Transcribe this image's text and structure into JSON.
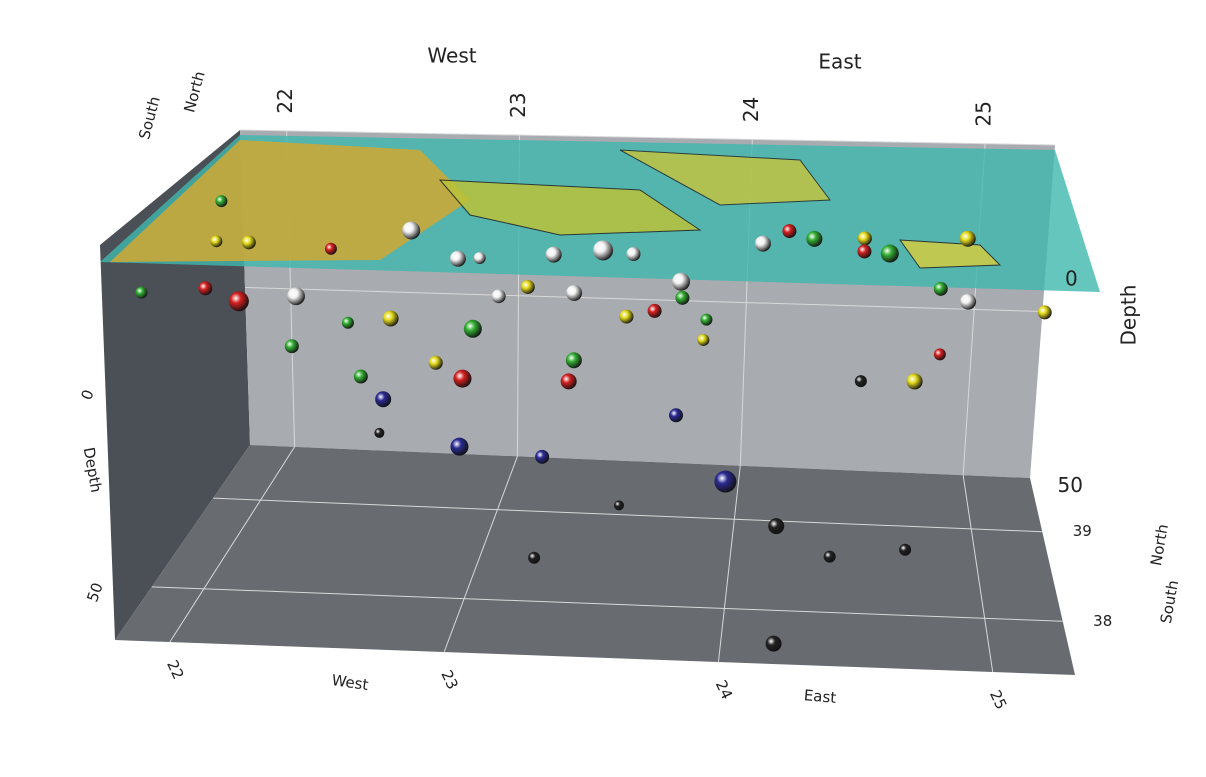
{
  "chart_data": {
    "type": "scatter3d",
    "x_labels": [
      "West",
      "East"
    ],
    "lat_labels": [
      "South",
      "North"
    ],
    "depth_label": "Depth",
    "xlim": [
      21.8,
      25.3
    ],
    "xticks": [
      22,
      23,
      24,
      25
    ],
    "latlim": [
      37.4,
      39.6
    ],
    "latticks": [
      38,
      39
    ],
    "depthlim": [
      0,
      100
    ],
    "depthticks": [
      0,
      50
    ],
    "grid": true,
    "series": [
      {
        "color": "#f2f2f2",
        "lon": [
          22.9,
          23.0,
          23.3,
          23.5,
          23.6,
          23.4,
          22.3,
          23.8,
          24.1,
          24.9,
          23.1,
          22.7
        ],
        "lat": [
          38.6,
          38.5,
          38.4,
          38.3,
          38.5,
          38.2,
          38.4,
          38.3,
          38.6,
          38.2,
          38.3,
          38.7
        ],
        "depth": [
          20,
          18,
          15,
          12,
          16,
          22,
          28,
          20,
          14,
          22,
          25,
          14
        ],
        "size": [
          8,
          6,
          8,
          10,
          7,
          8,
          9,
          9,
          8,
          8,
          7,
          9
        ]
      },
      {
        "color": "#e6dc1e",
        "lon": [
          21.9,
          22.1,
          22.7,
          23.2,
          23.6,
          24.5,
          24.9,
          25.2,
          23.9,
          24.7,
          22.9
        ],
        "lat": [
          38.8,
          38.5,
          38.2,
          38.4,
          38.2,
          38.6,
          38.5,
          38.3,
          38.1,
          37.9,
          38.0
        ],
        "depth": [
          20,
          15,
          30,
          24,
          28,
          12,
          10,
          26,
          32,
          38,
          38
        ],
        "size": [
          6,
          7,
          8,
          7,
          7,
          7,
          8,
          7,
          6,
          8,
          7
        ]
      },
      {
        "color": "#d42020",
        "lon": [
          21.9,
          22.1,
          22.4,
          23.0,
          23.4,
          24.2,
          24.5,
          24.8,
          23.7
        ],
        "lat": [
          38.6,
          38.3,
          38.6,
          38.0,
          38.0,
          38.7,
          38.5,
          38.2,
          38.3
        ],
        "depth": [
          30,
          28,
          18,
          42,
          42,
          12,
          14,
          36,
          28
        ],
        "size": [
          7,
          10,
          6,
          9,
          8,
          7,
          7,
          6,
          7
        ]
      },
      {
        "color": "#34b034",
        "lon": [
          21.7,
          21.9,
          22.3,
          22.6,
          23.0,
          23.4,
          23.8,
          24.3,
          24.6,
          24.8,
          22.5,
          23.9
        ],
        "lat": [
          38.4,
          38.9,
          38.3,
          38.1,
          38.3,
          38.2,
          38.4,
          38.7,
          38.6,
          38.4,
          38.4,
          38.3
        ],
        "depth": [
          28,
          10,
          40,
          44,
          34,
          40,
          26,
          14,
          16,
          22,
          35,
          30
        ],
        "size": [
          6,
          6,
          7,
          7,
          9,
          8,
          7,
          8,
          9,
          7,
          6,
          6
        ]
      },
      {
        "color": "#2a2a92",
        "lon": [
          22.7,
          23.0,
          23.3,
          23.8,
          24.0
        ],
        "lat": [
          38.0,
          37.9,
          38.0,
          38.1,
          37.9
        ],
        "depth": [
          48,
          58,
          62,
          52,
          65
        ],
        "size": [
          8,
          9,
          7,
          7,
          11
        ]
      },
      {
        "color": "#222222",
        "lon": [
          22.7,
          23.3,
          23.6,
          24.2,
          24.2,
          24.5,
          24.4,
          24.7
        ],
        "lat": [
          37.9,
          37.7,
          37.9,
          37.6,
          37.4,
          38.0,
          38.2,
          38.4
        ],
        "depth": [
          55,
          82,
          72,
          70,
          95,
          40,
          90,
          92
        ],
        "size": [
          5,
          6,
          5,
          8,
          8,
          6,
          6,
          6
        ]
      }
    ]
  }
}
